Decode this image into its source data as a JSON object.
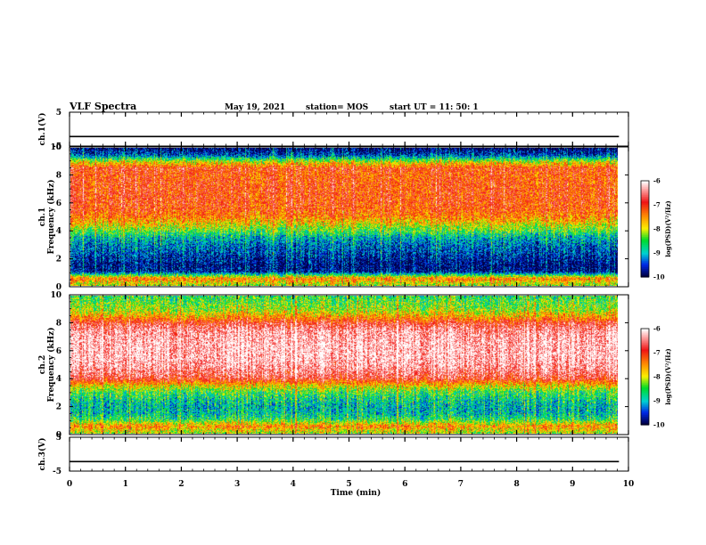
{
  "header": {
    "title": "VLF Spectra",
    "date": "May 19, 2021",
    "station": "station= MOS",
    "start": "start  UT =   11: 50: 1"
  },
  "chart_data": [
    {
      "type": "line",
      "panel": "ch1-waveform",
      "ylabel": "ch.1(V)",
      "ylim": [
        -5,
        5
      ],
      "yticks": [
        5,
        -5
      ],
      "x": [
        0,
        9.83
      ],
      "values": [
        -2.2,
        -2.2
      ]
    },
    {
      "type": "heatmap",
      "panel": "ch1-spectrogram",
      "ylabel": "ch.1\nFrequency (kHz)",
      "ylim": [
        0,
        10
      ],
      "yticks": [
        0,
        2,
        4,
        6,
        8,
        10
      ],
      "xlim": [
        0,
        9.83
      ],
      "profile_freq_khz": [
        0,
        0.5,
        1,
        1.5,
        2,
        2.5,
        3,
        3.5,
        4,
        4.5,
        5,
        5.5,
        6,
        6.5,
        7,
        7.5,
        8,
        8.5,
        9,
        9.5,
        10
      ],
      "profile_log_psd": [
        -8.2,
        -7.4,
        -9.8,
        -9.9,
        -9.7,
        -9.5,
        -9.3,
        -9.0,
        -8.4,
        -7.9,
        -7.4,
        -7.2,
        -7.1,
        -7.1,
        -7.1,
        -7.1,
        -7.2,
        -7.0,
        -8.0,
        -9.5,
        -10.0
      ],
      "colorbar": {
        "label": "log(PSD)(V²/Hz)",
        "ticks": [
          "-6",
          "-7",
          "-8",
          "-9",
          "-10"
        ],
        "range": [
          -10,
          -6
        ]
      }
    },
    {
      "type": "heatmap",
      "panel": "ch2-spectrogram",
      "ylabel": "ch.2\nFrequency (kHz)",
      "ylim": [
        0,
        10
      ],
      "yticks": [
        0,
        2,
        4,
        6,
        8,
        10
      ],
      "xlim": [
        0,
        9.83
      ],
      "profile_freq_khz": [
        0,
        0.5,
        1,
        1.5,
        2,
        2.5,
        3,
        3.5,
        4,
        4.5,
        5,
        5.5,
        6,
        6.5,
        7,
        7.5,
        8,
        8.5,
        9,
        9.5,
        10
      ],
      "profile_log_psd": [
        -8.2,
        -7.5,
        -8.6,
        -9.0,
        -9.0,
        -8.8,
        -8.5,
        -7.8,
        -6.8,
        -6.5,
        -6.3,
        -6.2,
        -6.2,
        -6.2,
        -6.3,
        -6.4,
        -6.8,
        -7.6,
        -8.2,
        -8.4,
        -8.6
      ],
      "colorbar": {
        "label": "log(PSD)(V²/Hz)",
        "ticks": [
          "-6",
          "-7",
          "-8",
          "-9",
          "-10"
        ],
        "range": [
          -10,
          -6
        ]
      }
    },
    {
      "type": "line",
      "panel": "ch3-waveform",
      "ylabel": "ch.3(V)",
      "ylim": [
        -5,
        5
      ],
      "yticks": [
        5,
        -5
      ],
      "x": [
        0,
        9.83
      ],
      "values": [
        -2.2,
        -2.2
      ]
    }
  ],
  "xaxis": {
    "label": "Time (min)",
    "ticks": [
      "0",
      "1",
      "2",
      "3",
      "4",
      "5",
      "6",
      "7",
      "8",
      "9",
      "10"
    ],
    "xlim": [
      0,
      10
    ]
  }
}
